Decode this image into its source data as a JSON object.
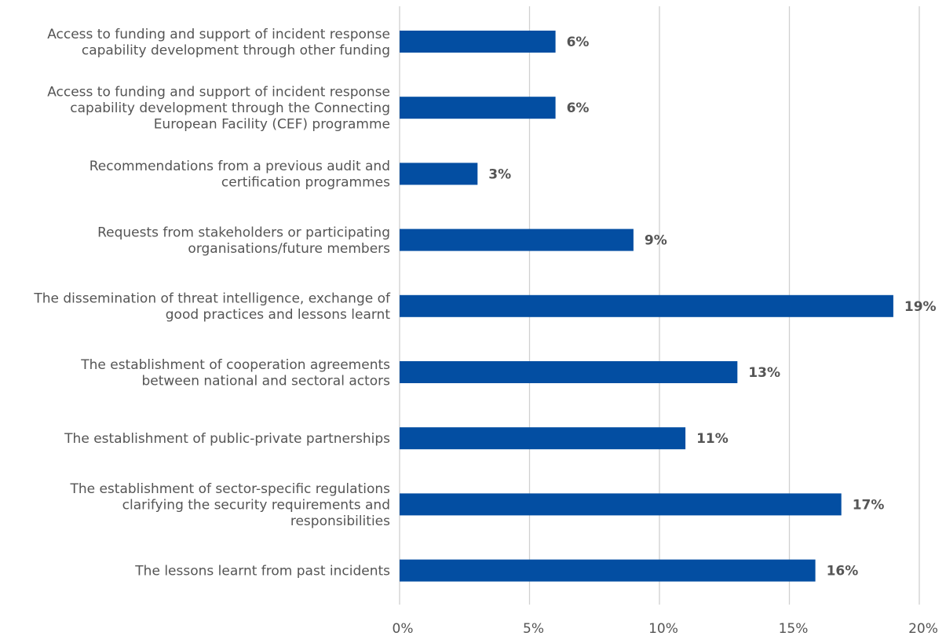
{
  "chart_data": {
    "type": "bar",
    "orientation": "horizontal",
    "categories": [
      [
        "Access to funding and support of incident response",
        "capability development through other funding"
      ],
      [
        "Access to funding and support of incident response",
        "capability development through the Connecting",
        "European Facility (CEF) programme"
      ],
      [
        "Recommendations from a previous audit and",
        "certification programmes"
      ],
      [
        "Requests from stakeholders or participating",
        "organisations/future members"
      ],
      [
        "The dissemination of threat intelligence, exchange of",
        "good practices and lessons learnt"
      ],
      [
        "The establishment of cooperation agreements",
        "between national and sectoral actors"
      ],
      [
        "The establishment of public-private partnerships"
      ],
      [
        "The establishment of sector-specific regulations",
        "clarifying the security requirements and",
        "responsibilities"
      ],
      [
        "The lessons learnt from past incidents"
      ]
    ],
    "values": [
      6,
      6,
      3,
      9,
      19,
      13,
      11,
      17,
      16
    ],
    "value_labels": [
      "6%",
      "6%",
      "3%",
      "9%",
      "19%",
      "13%",
      "11%",
      "17%",
      "16%"
    ],
    "xlim": [
      0,
      20
    ],
    "x_ticks": [
      0,
      5,
      10,
      15,
      20
    ],
    "x_tick_labels": [
      "0%",
      "5%",
      "10%",
      "15%",
      "20%"
    ],
    "title": "",
    "xlabel": "",
    "ylabel": "",
    "grid": "vertical",
    "legend": "none",
    "colors": {
      "bar": "#034ea2",
      "grid": "#d0d0d0",
      "text": "#555555"
    }
  }
}
